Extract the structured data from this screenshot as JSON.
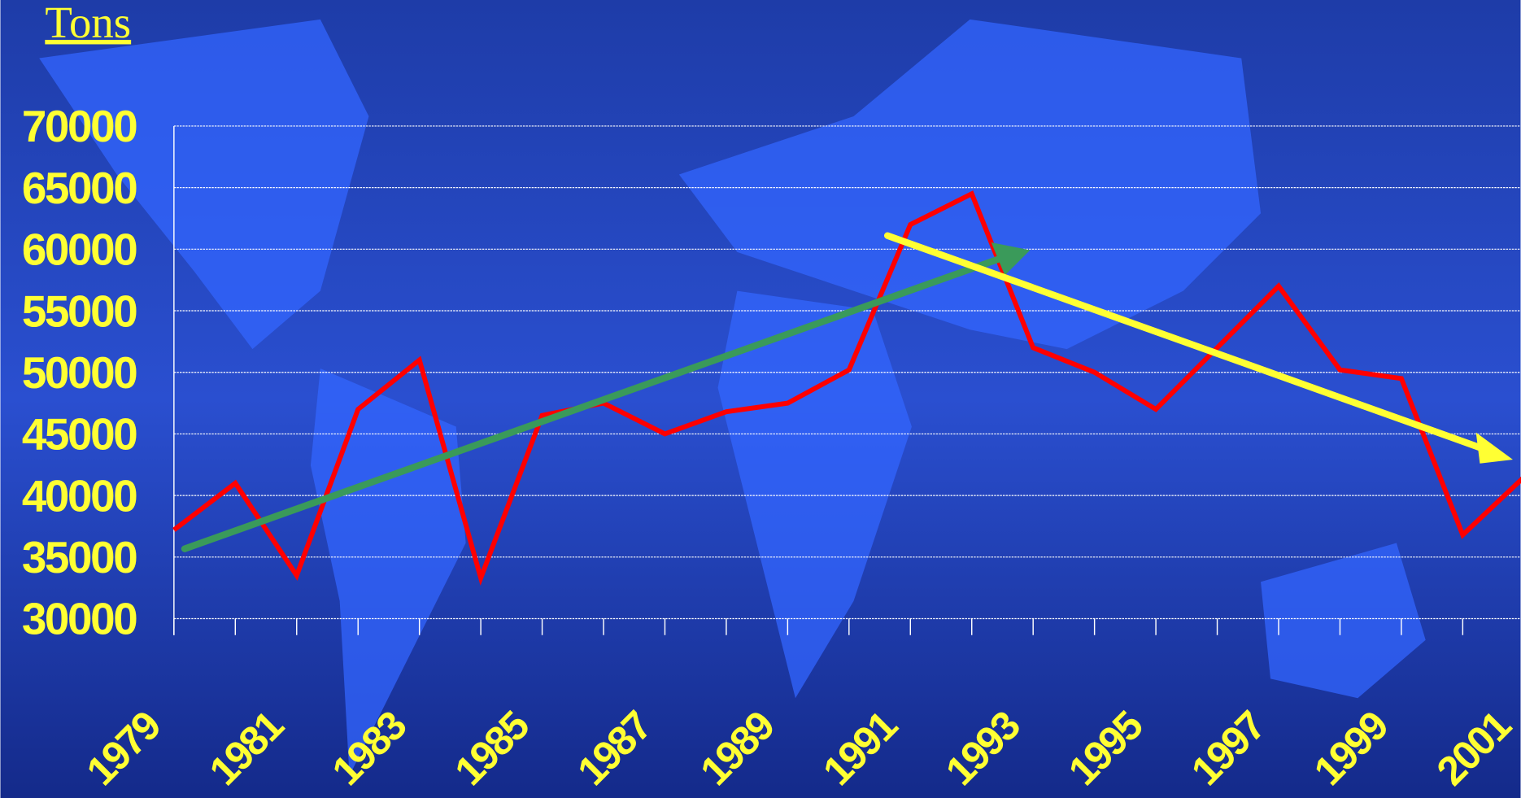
{
  "chart_data": {
    "type": "line",
    "title": "Tons",
    "categories": [
      "1979",
      null,
      "1981",
      null,
      "1983",
      null,
      "1985",
      null,
      "1987",
      null,
      "1989",
      null,
      "1991",
      null,
      "1993",
      null,
      "1995",
      null,
      "1997",
      null,
      "1999",
      null,
      "2001"
    ],
    "series": [
      {
        "color": "#ff0000",
        "values": [
          37200,
          41000,
          33500,
          47000,
          51000,
          33300,
          46500,
          47500,
          45000,
          46800,
          47500,
          50200,
          62000,
          64500,
          52000,
          50000,
          47000,
          52000,
          57000,
          50200,
          49500,
          36800,
          41500
        ]
      }
    ],
    "ylim": [
      30000,
      70000
    ],
    "yticks": [
      30000,
      35000,
      40000,
      45000,
      50000,
      55000,
      60000,
      65000,
      70000
    ],
    "grid": true
  }
}
